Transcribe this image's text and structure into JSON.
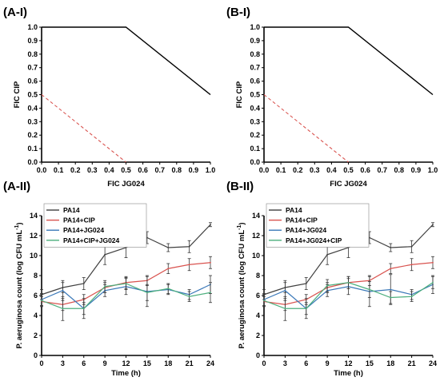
{
  "chart_data": [
    {
      "panel": "(A-I)",
      "type": "line",
      "xlabel": "FIC JG024",
      "ylabel": "FIC CIP",
      "xlim": [
        0,
        1
      ],
      "ylim": [
        0,
        1
      ],
      "xticks": [
        "0.0",
        "0.1",
        "0.2",
        "0.3",
        "0.4",
        "0.5",
        "0.6",
        "0.7",
        "0.8",
        "0.9",
        "1.0"
      ],
      "yticks": [
        "0.0",
        "0.1",
        "0.2",
        "0.3",
        "0.4",
        "0.5",
        "0.6",
        "0.7",
        "0.8",
        "0.9",
        "1.0"
      ],
      "series": [
        {
          "style": "solid",
          "color": "#000000",
          "x": [
            0,
            0.5,
            1.0
          ],
          "y": [
            1.0,
            1.0,
            0.5
          ]
        },
        {
          "style": "dashed",
          "color": "#d9534f",
          "x": [
            0,
            0.5
          ],
          "y": [
            0.5,
            0
          ]
        }
      ]
    },
    {
      "panel": "(B-I)",
      "type": "line",
      "xlabel": "FIC JG024",
      "ylabel": "FIC CIP",
      "xlim": [
        0,
        1
      ],
      "ylim": [
        0,
        1
      ],
      "xticks": [
        "0.0",
        "0.1",
        "0.2",
        "0.3",
        "0.4",
        "0.5",
        "0.6",
        "0.7",
        "0.8",
        "0.9",
        "1.0"
      ],
      "yticks": [
        "0.0",
        "0.1",
        "0.2",
        "0.3",
        "0.4",
        "0.5",
        "0.6",
        "0.7",
        "0.8",
        "0.9",
        "1.0"
      ],
      "series": [
        {
          "style": "solid",
          "color": "#000000",
          "x": [
            0,
            0.5,
            1.0
          ],
          "y": [
            1.0,
            1.0,
            0.5
          ]
        },
        {
          "style": "dashed",
          "color": "#d9534f",
          "x": [
            0,
            0.5
          ],
          "y": [
            0.5,
            0
          ]
        }
      ]
    },
    {
      "panel": "(A-II)",
      "type": "line",
      "xlabel": "Time (h)",
      "ylabel": "P. aeruginosa count (log CFU mL",
      "ylabel_sup": "-1",
      "ylabel_end": ")",
      "xlim": [
        0,
        24
      ],
      "ylim": [
        0,
        14
      ],
      "xticks": [
        0,
        3,
        6,
        9,
        12,
        15,
        18,
        21,
        24
      ],
      "yticks": [
        0,
        2,
        4,
        6,
        8,
        10,
        12,
        14
      ],
      "legend_position": "top-left",
      "x": [
        0,
        3,
        6,
        9,
        12,
        15,
        18,
        21,
        24
      ],
      "series": [
        {
          "name": "PA14",
          "color": "#404040",
          "values": [
            6.1,
            6.8,
            7.2,
            10.1,
            10.8,
            11.8,
            10.8,
            10.9,
            13.1
          ],
          "errors": [
            0.5,
            0.5,
            0.6,
            1.0,
            1.0,
            0.6,
            0.4,
            0.6,
            0.2
          ]
        },
        {
          "name": "PA14+CIP",
          "color": "#d9534f",
          "values": [
            5.4,
            5.1,
            5.6,
            6.8,
            7.3,
            7.5,
            8.7,
            9.1,
            9.3
          ],
          "errors": [
            0.5,
            0.6,
            0.5,
            0.5,
            0.6,
            0.5,
            0.5,
            0.6,
            0.6
          ]
        },
        {
          "name": "PA14+JG024",
          "color": "#3a78b8",
          "values": [
            5.6,
            6.5,
            4.7,
            6.5,
            6.9,
            6.4,
            6.6,
            6.1,
            7.1
          ],
          "errors": [
            0.6,
            1.0,
            0.6,
            0.6,
            0.8,
            1.5,
            0.5,
            0.5,
            0.9
          ]
        },
        {
          "name": "PA14+CIP+JG024",
          "color": "#4caf7d",
          "values": [
            5.5,
            4.7,
            4.7,
            6.9,
            7.2,
            6.3,
            6.7,
            5.9,
            6.3
          ],
          "errors": [
            0.6,
            1.2,
            1.0,
            0.6,
            0.6,
            0.8,
            0.5,
            0.5,
            1.0
          ]
        }
      ]
    },
    {
      "panel": "(B-II)",
      "type": "line",
      "xlabel": "Time (h)",
      "ylabel": "P. aeruginosa count (log CFU mL",
      "ylabel_sup": "-1",
      "ylabel_end": ")",
      "xlim": [
        0,
        24
      ],
      "ylim": [
        0,
        14
      ],
      "xticks": [
        0,
        3,
        6,
        9,
        12,
        15,
        18,
        21,
        24
      ],
      "yticks": [
        0,
        2,
        4,
        6,
        8,
        10,
        12,
        14
      ],
      "legend_position": "top-left",
      "x": [
        0,
        3,
        6,
        9,
        12,
        15,
        18,
        21,
        24
      ],
      "series": [
        {
          "name": "PA14",
          "color": "#404040",
          "values": [
            6.1,
            6.8,
            7.2,
            10.1,
            10.8,
            11.8,
            10.8,
            10.9,
            13.1
          ],
          "errors": [
            0.5,
            0.5,
            0.6,
            1.0,
            1.0,
            0.6,
            0.4,
            0.6,
            0.2
          ]
        },
        {
          "name": "PA14+CIP",
          "color": "#d9534f",
          "values": [
            5.4,
            5.1,
            5.6,
            6.8,
            7.3,
            7.5,
            8.7,
            9.1,
            9.3
          ],
          "errors": [
            0.5,
            0.6,
            0.5,
            0.5,
            0.6,
            0.5,
            0.5,
            0.6,
            0.6
          ]
        },
        {
          "name": "PA14+JG024",
          "color": "#3a78b8",
          "values": [
            5.6,
            6.5,
            4.7,
            6.5,
            6.9,
            6.4,
            6.6,
            6.1,
            7.1
          ],
          "errors": [
            0.6,
            1.0,
            0.6,
            0.6,
            0.8,
            1.5,
            1.5,
            0.5,
            0.9
          ]
        },
        {
          "name": "PA14+JG024+CIP",
          "color": "#4caf7d",
          "values": [
            5.5,
            4.7,
            4.7,
            7.0,
            7.3,
            6.6,
            5.8,
            5.9,
            7.3
          ],
          "errors": [
            0.6,
            1.2,
            1.0,
            0.6,
            0.6,
            0.8,
            0.6,
            0.5,
            0.6
          ]
        }
      ]
    }
  ]
}
